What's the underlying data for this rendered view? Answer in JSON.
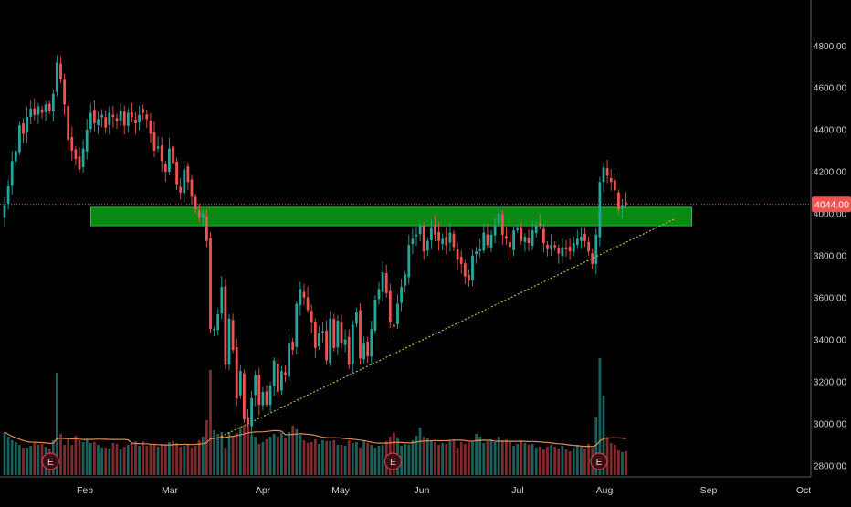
{
  "colors": {
    "background": "#000000",
    "up": "#26a69a",
    "down": "#ef5350",
    "zone": "#0a8a14",
    "zone_border": "#2ed12e",
    "trendline": "#c9c928",
    "price_line": "#ef5350",
    "volume_ma": "#e08a50",
    "axis_text": "#d0d0d0",
    "axis_line": "#5a5a5a"
  },
  "chart_data": {
    "type": "candlestick",
    "title": "",
    "xlabel": "",
    "ylabel": "",
    "ylim": [
      2740,
      4960
    ],
    "grid": false,
    "x_axis_labels": [
      "Feb",
      "Mar",
      "Apr",
      "May",
      "Jun",
      "Jul",
      "Aug",
      "Sep",
      "Oct"
    ],
    "y_axis_labels": [
      "4800.00",
      "4600.00",
      "4400.00",
      "4200.00",
      "4000.00",
      "3800.00",
      "3600.00",
      "3400.00",
      "3200.00",
      "3000.00",
      "2800.00"
    ],
    "last_price": 4044.0,
    "last_price_label": "4044.00",
    "earnings_marker_label": "E",
    "earnings_markers": [
      "Jan 22",
      "May 21",
      "Jul 30"
    ],
    "support_zone": {
      "from": "Feb 3",
      "to": "Aug 27",
      "low": 3942,
      "high": 4030
    },
    "trendline": {
      "start": {
        "date": "Mar 17",
        "price": 2930
      },
      "end": {
        "date": "Aug 22",
        "price": 3975
      }
    },
    "closes": [
      4040,
      4130,
      4250,
      4300,
      4420,
      4380,
      4460,
      4500,
      4470,
      4510,
      4480,
      4520,
      4490,
      4570,
      4720,
      4640,
      4520,
      4350,
      4300,
      4260,
      4210,
      4310,
      4400,
      4480,
      4430,
      4450,
      4470,
      4410,
      4480,
      4460,
      4440,
      4490,
      4420,
      4480,
      4460,
      4430,
      4470,
      4480,
      4450,
      4380,
      4300,
      4320,
      4250,
      4200,
      4310,
      4240,
      4140,
      4100,
      4210,
      4150,
      4080,
      4020,
      3980,
      4000,
      3870,
      3450,
      3450,
      3520,
      3650,
      3280,
      3500,
      3350,
      3120,
      3250,
      3020,
      3000,
      3120,
      3230,
      3090,
      3150,
      3090,
      3180,
      3300,
      3150,
      3250,
      3230,
      3380,
      3350,
      3570,
      3640,
      3600,
      3540,
      3480,
      3360,
      3430,
      3440,
      3300,
      3500,
      3360,
      3490,
      3380,
      3400,
      3280,
      3470,
      3530,
      3310,
      3380,
      3320,
      3450,
      3590,
      3640,
      3720,
      3620,
      3480,
      3460,
      3570,
      3650,
      3710,
      3850,
      3880,
      3900,
      3940,
      3820,
      3870,
      3930,
      3900,
      3870,
      3880,
      3850,
      3910,
      3840,
      3780,
      3760,
      3700,
      3680,
      3800,
      3820,
      3830,
      3910,
      3850,
      3900,
      3940,
      4000,
      3900,
      3880,
      3840,
      3920,
      3930,
      3870,
      3890,
      3860,
      3920,
      3940,
      3940,
      3860,
      3830,
      3850,
      3840,
      3810,
      3840,
      3830,
      3820,
      3860,
      3880,
      3890,
      3870,
      3820,
      3760,
      3900,
      4150,
      4220,
      4180,
      4150,
      4110,
      4020,
      4040,
      4044
    ],
    "volumes": [
      470,
      420,
      380,
      360,
      330,
      300,
      300,
      320,
      350,
      330,
      340,
      310,
      290,
      380,
      1120,
      450,
      330,
      400,
      330,
      430,
      380,
      360,
      390,
      350,
      360,
      330,
      300,
      300,
      290,
      350,
      340,
      280,
      310,
      330,
      360,
      370,
      320,
      370,
      320,
      340,
      330,
      310,
      340,
      330,
      360,
      370,
      350,
      310,
      320,
      340,
      300,
      320,
      380,
      420,
      600,
      1150,
      490,
      450,
      470,
      300,
      470,
      420,
      460,
      530,
      540,
      600,
      440,
      420,
      340,
      360,
      390,
      420,
      450,
      420,
      460,
      410,
      470,
      540,
      500,
      440,
      380,
      350,
      360,
      390,
      340,
      380,
      370,
      370,
      380,
      330,
      330,
      320,
      380,
      350,
      360,
      300,
      380,
      350,
      330,
      300,
      320,
      330,
      370,
      420,
      460,
      410,
      320,
      340,
      330,
      380,
      430,
      520,
      420,
      400,
      380,
      360,
      330,
      350,
      340,
      370,
      390,
      300,
      360,
      340,
      360,
      360,
      450,
      420,
      350,
      370,
      390,
      360,
      420,
      380,
      390,
      360,
      320,
      340,
      370,
      350,
      330,
      340,
      300,
      310,
      280,
      310,
      330,
      310,
      290,
      320,
      280,
      260,
      300,
      330,
      310,
      290,
      340,
      300,
      630,
      1280,
      870,
      420,
      350,
      330,
      270,
      250,
      260
    ]
  }
}
